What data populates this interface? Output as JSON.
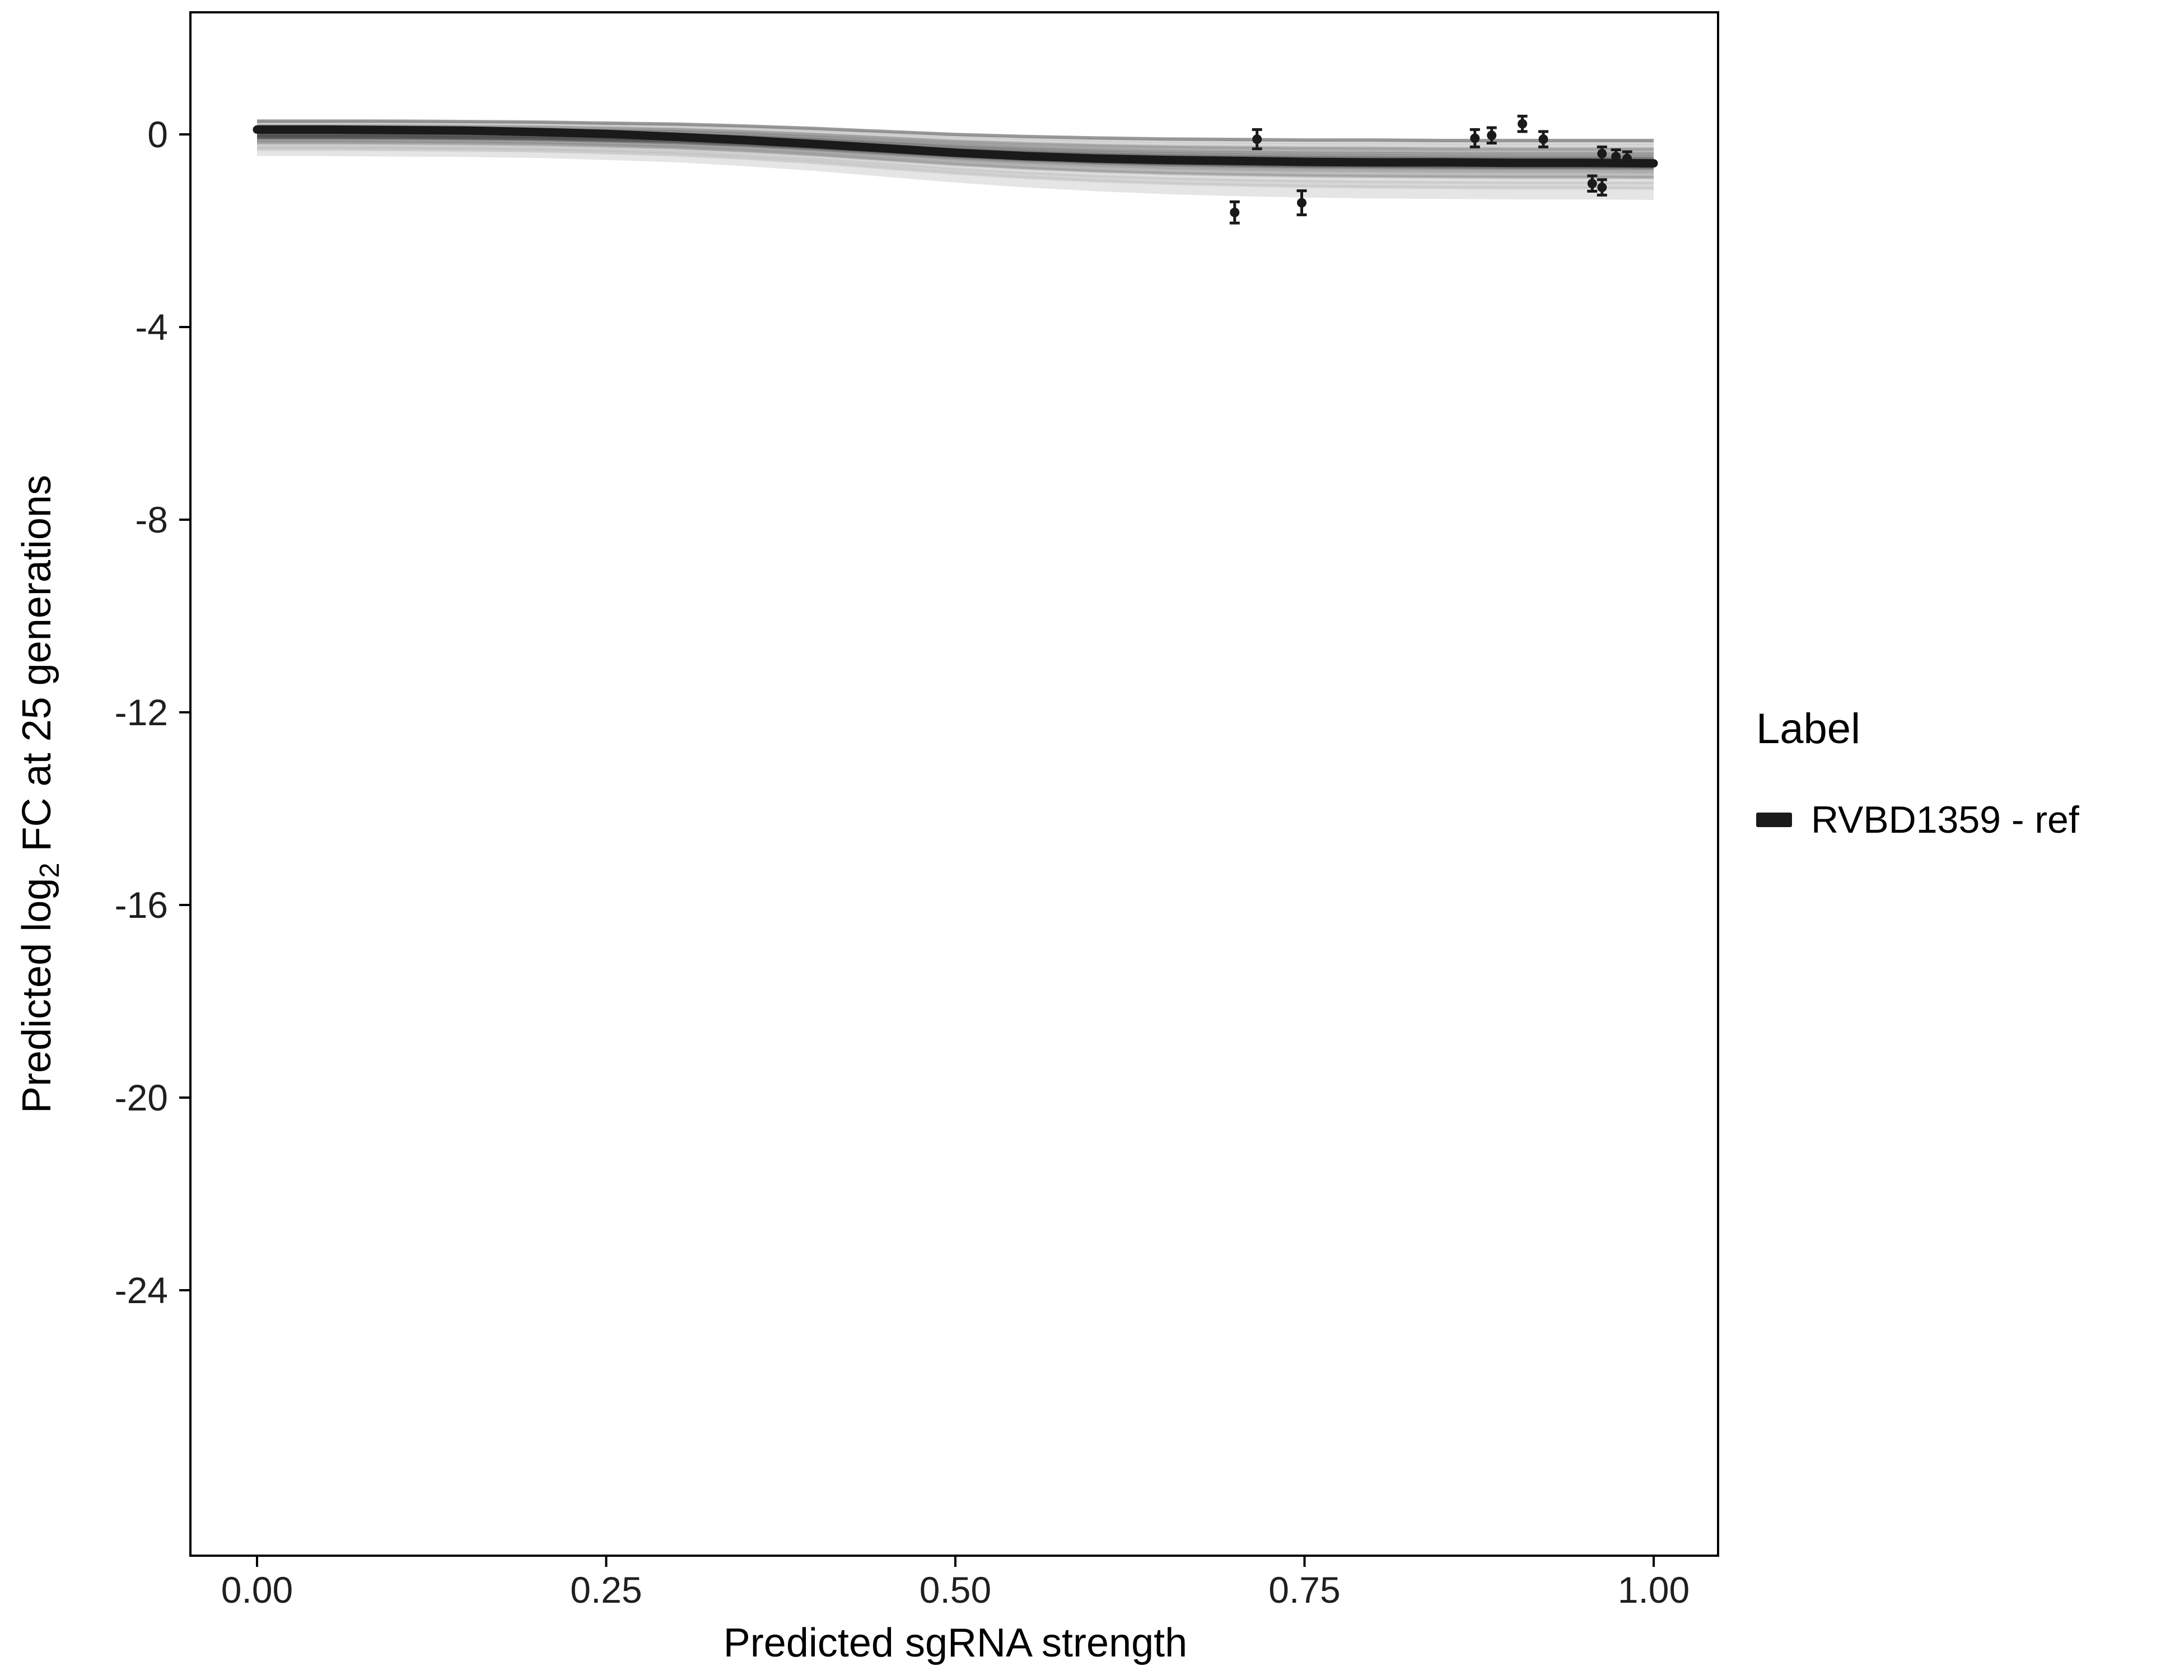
{
  "chart_data": {
    "type": "line",
    "title": "",
    "xlabel": "Predicted sgRNA strength",
    "ylabel": "Predicted log2 FC at 25 generations",
    "ylabel_parts": {
      "pre": "Predicted  log",
      "sub": "2",
      "post": " FC at 25 generations"
    },
    "x_tick_labels": [
      "0.00",
      "0.25",
      "0.50",
      "0.75",
      "1.00"
    ],
    "x_tick_values": [
      0,
      0.25,
      0.5,
      0.75,
      1
    ],
    "y_tick_labels": [
      "0",
      "-4",
      "-8",
      "-12",
      "-16",
      "-20",
      "-24"
    ],
    "y_tick_values": [
      0,
      -4,
      -8,
      -12,
      -16,
      -20,
      -24
    ],
    "xlim": [
      -0.05,
      1.05
    ],
    "ylim": [
      -29.5,
      2.5
    ],
    "grid": false,
    "legend": {
      "title": "Label",
      "position": "right",
      "entries": [
        {
          "label": "RVBD1359 - ref",
          "color": "#1a1a1a"
        }
      ]
    },
    "series": [
      {
        "name": "RVBD1359 - ref",
        "x": [
          0,
          0.05,
          0.1,
          0.15,
          0.2,
          0.25,
          0.3,
          0.35,
          0.4,
          0.45,
          0.5,
          0.55,
          0.6,
          0.65,
          0.7,
          0.75,
          0.8,
          0.85,
          0.9,
          0.95,
          1
        ],
        "y": [
          0.1,
          0.1,
          0.09,
          0.08,
          0.05,
          0.01,
          -0.05,
          -0.12,
          -0.2,
          -0.29,
          -0.38,
          -0.45,
          -0.5,
          -0.53,
          -0.55,
          -0.57,
          -0.58,
          -0.58,
          -0.59,
          -0.59,
          -0.6
        ]
      }
    ],
    "band": {
      "x": [
        0,
        0.05,
        0.1,
        0.15,
        0.2,
        0.25,
        0.3,
        0.35,
        0.4,
        0.45,
        0.5,
        0.55,
        0.6,
        0.65,
        0.7,
        0.75,
        0.8,
        0.85,
        0.9,
        0.95,
        1
      ],
      "upper": [
        0.3,
        0.3,
        0.3,
        0.29,
        0.28,
        0.26,
        0.24,
        0.2,
        0.15,
        0.09,
        0.03,
        -0.01,
        -0.04,
        -0.06,
        -0.07,
        -0.08,
        -0.08,
        -0.09,
        -0.09,
        -0.09,
        -0.09
      ],
      "lower": [
        -0.45,
        -0.45,
        -0.46,
        -0.47,
        -0.49,
        -0.53,
        -0.58,
        -0.66,
        -0.76,
        -0.88,
        -1.0,
        -1.1,
        -1.18,
        -1.24,
        -1.28,
        -1.31,
        -1.33,
        -1.34,
        -1.35,
        -1.35,
        -1.36
      ]
    },
    "points": [
      {
        "x": 0.7,
        "y": -1.62,
        "err": 0.22
      },
      {
        "x": 0.716,
        "y": -0.1,
        "err": 0.2
      },
      {
        "x": 0.748,
        "y": -1.42,
        "err": 0.25
      },
      {
        "x": 0.872,
        "y": -0.08,
        "err": 0.18
      },
      {
        "x": 0.884,
        "y": -0.02,
        "err": 0.16
      },
      {
        "x": 0.906,
        "y": 0.22,
        "err": 0.16
      },
      {
        "x": 0.921,
        "y": -0.1,
        "err": 0.16
      },
      {
        "x": 0.956,
        "y": -1.02,
        "err": 0.16
      },
      {
        "x": 0.963,
        "y": -1.1,
        "err": 0.16
      },
      {
        "x": 0.963,
        "y": -0.4,
        "err": 0.14
      },
      {
        "x": 0.973,
        "y": -0.46,
        "err": 0.14
      },
      {
        "x": 0.981,
        "y": -0.5,
        "err": 0.14
      }
    ],
    "colors": {
      "line": "#1a1a1a",
      "point": "#1a1a1a",
      "band": "#000000",
      "panel_border": "#000000",
      "tick_label": "#333333",
      "background": "#ffffff"
    }
  }
}
